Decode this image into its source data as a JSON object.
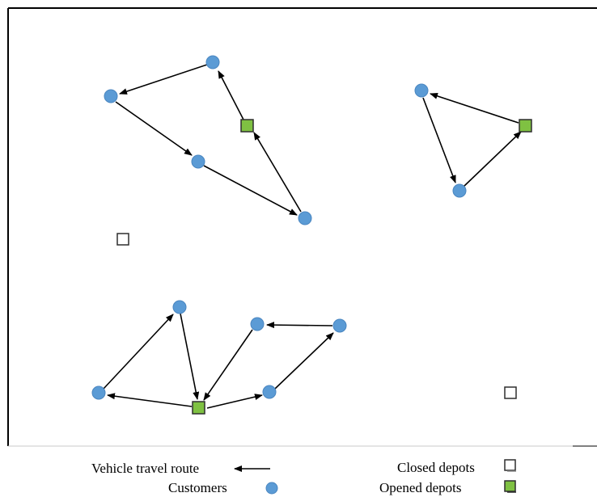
{
  "colors": {
    "customer": "#5b9bd5",
    "customer_stroke": "#4a86c0",
    "opened_depot": "#7fc142",
    "depot_stroke": "#2e2e2e",
    "closed_depot": "#ffffff",
    "route": "#000000",
    "frame": "#000000"
  },
  "legend": {
    "route_label": "Vehicle travel route",
    "customers_label": "Customers",
    "closed_label": "Closed depots",
    "opened_label": "Opened depots"
  }
}
